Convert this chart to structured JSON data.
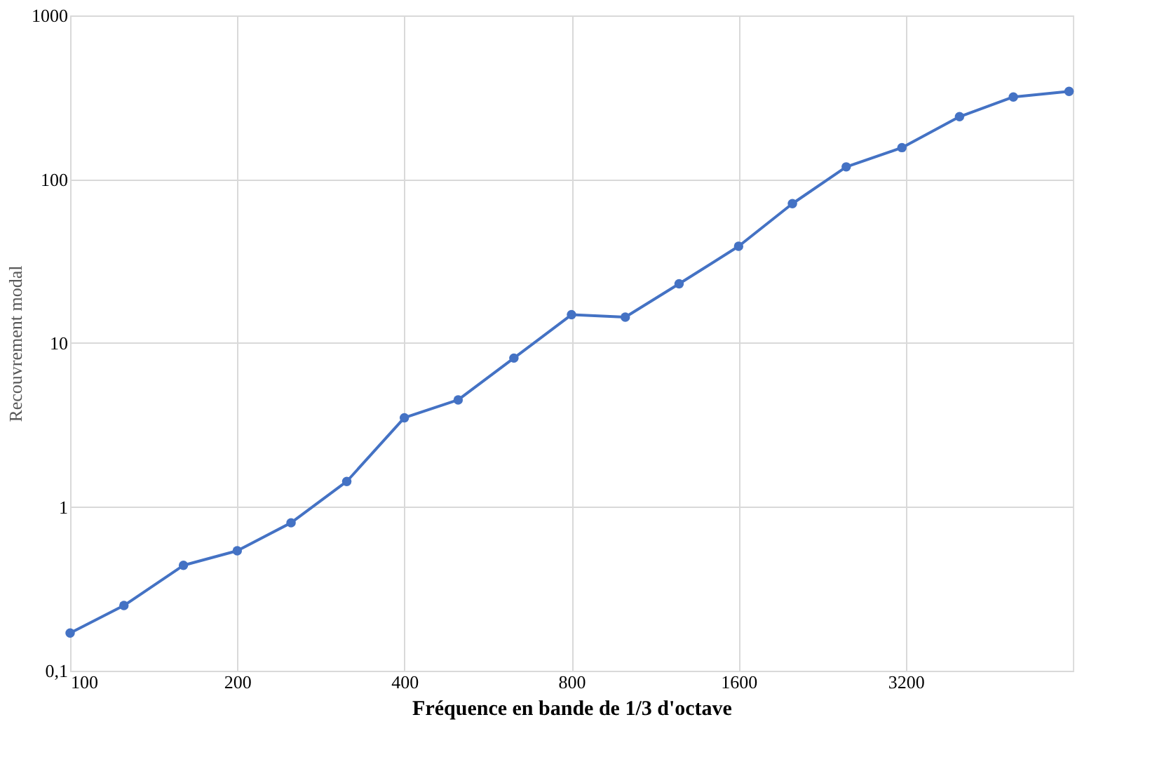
{
  "chart_data": {
    "type": "line",
    "xlabel": "Fréquence en bande de 1/3 d'octave",
    "ylabel": "Recouvrement modal",
    "x": [
      100,
      125,
      160,
      200,
      250,
      315,
      400,
      500,
      630,
      800,
      1000,
      1250,
      1600,
      2000,
      2500,
      3150,
      4000,
      5000,
      6300
    ],
    "series": [
      {
        "color": "#4472c4",
        "values": [
          0.17,
          0.25,
          0.44,
          0.54,
          0.8,
          1.43,
          3.5,
          4.5,
          8.1,
          14.9,
          14.4,
          23,
          39,
          71,
          119,
          156,
          241,
          318,
          344
        ]
      }
    ],
    "xlim": [
      100,
      6400
    ],
    "xticks": [
      100,
      200,
      400,
      800,
      1600,
      3200
    ],
    "ylim": [
      0.1,
      1000
    ],
    "yticks": [
      {
        "value": 0.1,
        "label": "0,1"
      },
      1,
      10,
      100,
      1000
    ],
    "log": "xy",
    "grid": true,
    "marker": "circle",
    "line_style": "solid"
  }
}
